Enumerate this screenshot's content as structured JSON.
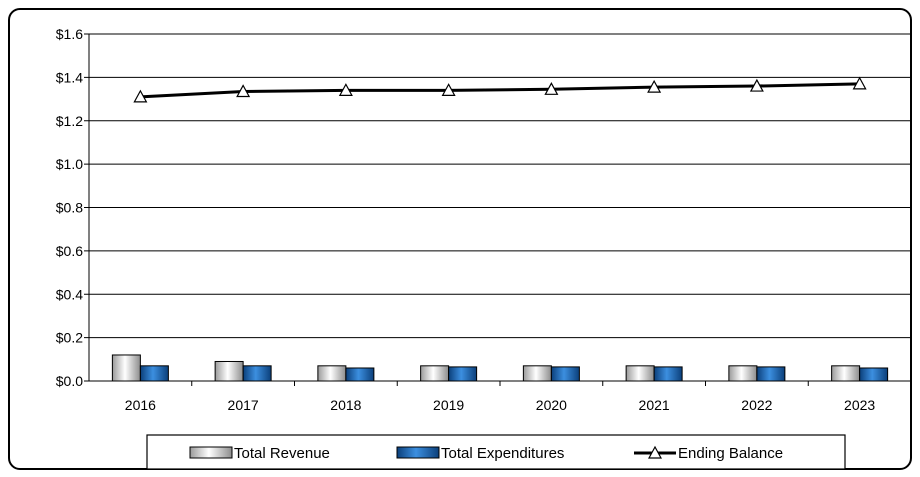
{
  "chart_data": {
    "type": "bar",
    "title": "",
    "xlabel": "",
    "ylabel": "",
    "categories": [
      "2016",
      "2017",
      "2018",
      "2019",
      "2020",
      "2021",
      "2022",
      "2023"
    ],
    "ylim": [
      0,
      1.6
    ],
    "yticks": [
      0,
      0.2,
      0.4,
      0.6,
      0.8,
      1.0,
      1.2,
      1.4,
      1.6
    ],
    "ytick_labels": [
      "$0.0",
      "$0.2",
      "$0.4",
      "$0.6",
      "$0.8",
      "$1.0",
      "$1.2",
      "$1.4",
      "$1.6"
    ],
    "grid": true,
    "legend_position": "bottom",
    "series": [
      {
        "name": "Total Revenue",
        "kind": "bar",
        "color": "#d9d9d9",
        "values": [
          0.12,
          0.09,
          0.07,
          0.07,
          0.07,
          0.07,
          0.07,
          0.07
        ]
      },
      {
        "name": "Total Expenditures",
        "kind": "bar",
        "color": "#1f63b5",
        "values": [
          0.07,
          0.07,
          0.06,
          0.065,
          0.065,
          0.065,
          0.065,
          0.06
        ]
      },
      {
        "name": "Ending Balance",
        "kind": "line",
        "marker": "triangle",
        "color": "#000000",
        "values": [
          1.31,
          1.335,
          1.34,
          1.34,
          1.345,
          1.355,
          1.36,
          1.37
        ]
      }
    ]
  }
}
